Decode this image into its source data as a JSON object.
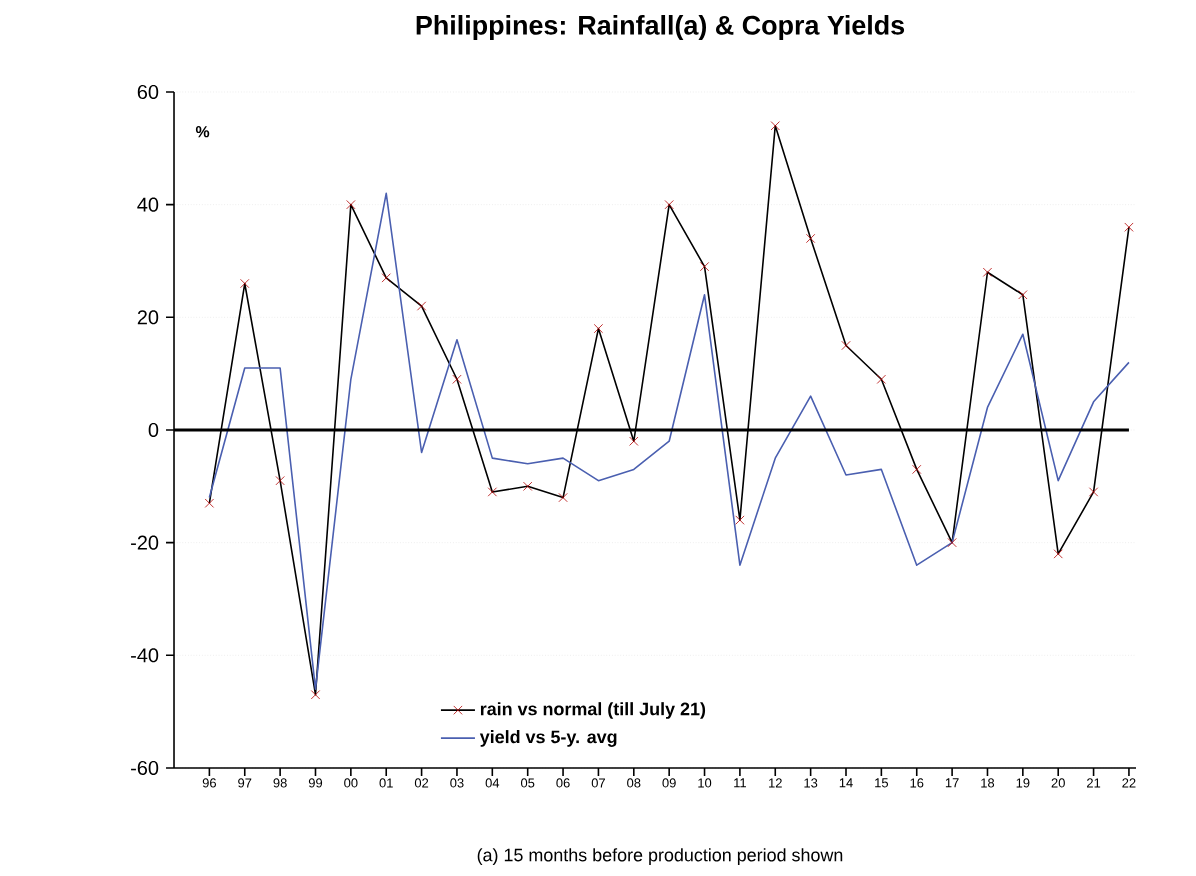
{
  "chart_data": {
    "type": "line",
    "title": "Philippines: Rainfall(a) & Copra Yields",
    "ylabel": "%",
    "categories": [
      "96",
      "97",
      "98",
      "99",
      "00",
      "01",
      "02",
      "03",
      "04",
      "05",
      "06",
      "07",
      "08",
      "09",
      "10",
      "11",
      "12",
      "13",
      "14",
      "15",
      "16",
      "17",
      "18",
      "19",
      "20",
      "21",
      "22"
    ],
    "series": [
      {
        "name": "rain vs normal (till July 21)",
        "color": "#000000",
        "marker": "cross",
        "values": [
          -13,
          26,
          -9,
          -47,
          40,
          27,
          22,
          9,
          -11,
          -10,
          -12,
          18,
          -2,
          40,
          29,
          -16,
          54,
          34,
          15,
          9,
          -7,
          -20,
          28,
          24,
          -22,
          -11,
          36
        ]
      },
      {
        "name": "yield vs  5-y. avg",
        "color": "#4a5fb0",
        "marker": "none",
        "values": [
          -12,
          11,
          11,
          -46,
          9,
          42,
          -4,
          16,
          -5,
          -6,
          -5,
          -9,
          -7,
          -2,
          24,
          -24,
          -5,
          6,
          -8,
          -7,
          -24,
          -20,
          4,
          17,
          -9,
          5,
          12
        ]
      }
    ],
    "ylim": [
      -60,
      60
    ],
    "yticks": [
      -60,
      -40,
      -20,
      0,
      20,
      40,
      60
    ],
    "grid": "y",
    "legend": "bottom",
    "ref_lines": [
      {
        "axis": "y",
        "value": 0
      }
    ],
    "annotations": [
      "(a) 15 months before production period shown"
    ]
  }
}
